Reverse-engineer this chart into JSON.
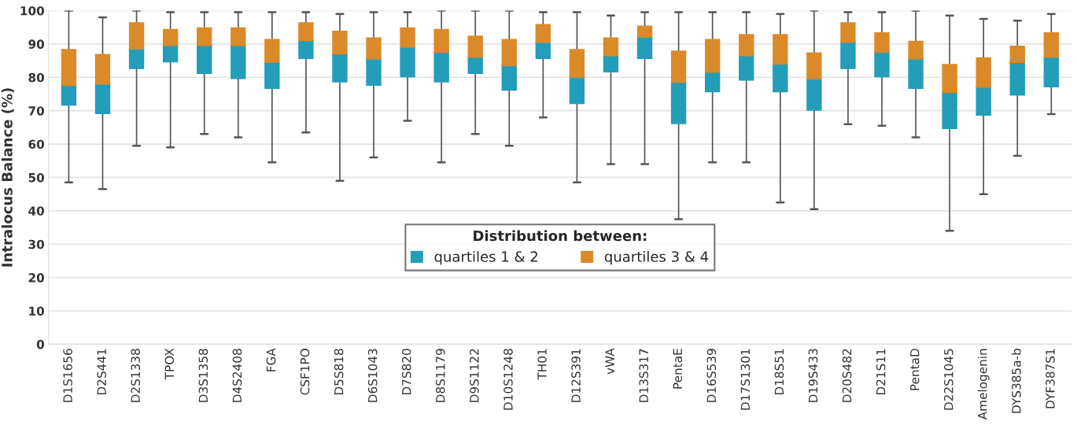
{
  "chart_data": {
    "type": "box",
    "ylabel": "Intralocus Balance (%)",
    "categories": [
      "D1S1656",
      "D2S441",
      "D2S1338",
      "TPOX",
      "D3S1358",
      "D4S2408",
      "FGA",
      "CSF1PO",
      "D5S818",
      "D6S1043",
      "D7S820",
      "D8S1179",
      "D9S1122",
      "D10S1248",
      "TH01",
      "D12S391",
      "vWA",
      "D13S317",
      "PentaE",
      "D16S539",
      "D17S1301",
      "D18S51",
      "D19S433",
      "D20S482",
      "D21S11",
      "PentaD",
      "D22S1045",
      "Amelogenin",
      "DYS385a-b",
      "DYF387S1"
    ],
    "legend_title": "Distribution between:",
    "series": [
      {
        "name": "quartiles 1 & 2",
        "color": "#239db8",
        "boxes": [
          {
            "low": 48.5,
            "q1": 71.5,
            "median": 77.5,
            "q3": 77.5,
            "high": 77.5
          },
          {
            "low": 46.5,
            "q1": 69,
            "median": 78,
            "q3": 78,
            "high": 78
          },
          {
            "low": 59.5,
            "q1": 82.5,
            "median": 88.5,
            "q3": 88.5,
            "high": 88.5
          },
          {
            "low": 59,
            "q1": 84.5,
            "median": 89.5,
            "q3": 89.5,
            "high": 89.5
          },
          {
            "low": 63,
            "q1": 81,
            "median": 89.5,
            "q3": 89.5,
            "high": 89.5
          },
          {
            "low": 62,
            "q1": 79.5,
            "median": 89.5,
            "q3": 89.5,
            "high": 89.5
          },
          {
            "low": 54.5,
            "q1": 76.5,
            "median": 84.5,
            "q3": 84.5,
            "high": 84.5
          },
          {
            "low": 63.5,
            "q1": 85.5,
            "median": 91,
            "q3": 91,
            "high": 91
          },
          {
            "low": 49,
            "q1": 78.5,
            "median": 87,
            "q3": 87,
            "high": 87
          },
          {
            "low": 56,
            "q1": 77.5,
            "median": 85.5,
            "q3": 85.5,
            "high": 85.5
          },
          {
            "low": 67,
            "q1": 80,
            "median": 89,
            "q3": 89,
            "high": 89
          },
          {
            "low": 54.5,
            "q1": 78.5,
            "median": 87.5,
            "q3": 87.5,
            "high": 87.5
          },
          {
            "low": 63,
            "q1": 81,
            "median": 86,
            "q3": 86,
            "high": 86
          },
          {
            "low": 59.5,
            "q1": 76,
            "median": 83.5,
            "q3": 83.5,
            "high": 83.5
          },
          {
            "low": 68,
            "q1": 85.5,
            "median": 90.5,
            "q3": 90.5,
            "high": 90.5
          },
          {
            "low": 48.5,
            "q1": 72,
            "median": 80,
            "q3": 80,
            "high": 80
          },
          {
            "low": 54,
            "q1": 81.5,
            "median": 86.5,
            "q3": 86.5,
            "high": 86.5
          },
          {
            "low": 54,
            "q1": 85.5,
            "median": 92,
            "q3": 92,
            "high": 92
          },
          {
            "low": 37.5,
            "q1": 66,
            "median": 78.5,
            "q3": 78.5,
            "high": 78.5
          },
          {
            "low": 54.5,
            "q1": 75.5,
            "median": 81.5,
            "q3": 81.5,
            "high": 81.5
          },
          {
            "low": 54.5,
            "q1": 79,
            "median": 86.5,
            "q3": 86.5,
            "high": 86.5
          },
          {
            "low": 42.5,
            "q1": 75.5,
            "median": 84,
            "q3": 84,
            "high": 84
          },
          {
            "low": 40.5,
            "q1": 70,
            "median": 79.5,
            "q3": 79.5,
            "high": 79.5
          },
          {
            "low": 66,
            "q1": 82.5,
            "median": 90.5,
            "q3": 90.5,
            "high": 90.5
          },
          {
            "low": 65.5,
            "q1": 80,
            "median": 87.5,
            "q3": 87.5,
            "high": 87.5
          },
          {
            "low": 62,
            "q1": 76.5,
            "median": 85.5,
            "q3": 85.5,
            "high": 85.5
          },
          {
            "low": 34,
            "q1": 64.5,
            "median": 75.5,
            "q3": 75.5,
            "high": 75.5
          },
          {
            "low": 45,
            "q1": 68.5,
            "median": 77,
            "q3": 77,
            "high": 77
          },
          {
            "low": 56.5,
            "q1": 74.5,
            "median": 84.5,
            "q3": 84.5,
            "high": 84.5
          },
          {
            "low": 69,
            "q1": 77,
            "median": 86,
            "q3": 86,
            "high": 86
          }
        ]
      },
      {
        "name": "quartiles 3 & 4",
        "color": "#db8a2a",
        "boxes": [
          {
            "low": 77.5,
            "q1": 77.5,
            "median": 77.5,
            "q3": 88.5,
            "high": 100
          },
          {
            "low": 78,
            "q1": 78,
            "median": 78,
            "q3": 87,
            "high": 98
          },
          {
            "low": 88.5,
            "q1": 88.5,
            "median": 88.5,
            "q3": 96.5,
            "high": 100
          },
          {
            "low": 89.5,
            "q1": 89.5,
            "median": 89.5,
            "q3": 94.5,
            "high": 99.5
          },
          {
            "low": 89.5,
            "q1": 89.5,
            "median": 89.5,
            "q3": 95,
            "high": 99.5
          },
          {
            "low": 89.5,
            "q1": 89.5,
            "median": 89.5,
            "q3": 95,
            "high": 99.5
          },
          {
            "low": 84.5,
            "q1": 84.5,
            "median": 84.5,
            "q3": 91.5,
            "high": 99.5
          },
          {
            "low": 91,
            "q1": 91,
            "median": 91,
            "q3": 96.5,
            "high": 99.5
          },
          {
            "low": 87,
            "q1": 87,
            "median": 87,
            "q3": 94,
            "high": 99
          },
          {
            "low": 85.5,
            "q1": 85.5,
            "median": 85.5,
            "q3": 92,
            "high": 99.5
          },
          {
            "low": 89,
            "q1": 89,
            "median": 89,
            "q3": 95,
            "high": 99.5
          },
          {
            "low": 87.5,
            "q1": 87.5,
            "median": 87.5,
            "q3": 94.5,
            "high": 100
          },
          {
            "low": 86,
            "q1": 86,
            "median": 86,
            "q3": 92.5,
            "high": 100
          },
          {
            "low": 83.5,
            "q1": 83.5,
            "median": 83.5,
            "q3": 91.5,
            "high": 100
          },
          {
            "low": 90.5,
            "q1": 90.5,
            "median": 90.5,
            "q3": 96,
            "high": 99.5
          },
          {
            "low": 80,
            "q1": 80,
            "median": 80,
            "q3": 88.5,
            "high": 99.5
          },
          {
            "low": 86.5,
            "q1": 86.5,
            "median": 86.5,
            "q3": 92,
            "high": 98.5
          },
          {
            "low": 92,
            "q1": 92,
            "median": 92,
            "q3": 95.5,
            "high": 99.5
          },
          {
            "low": 78.5,
            "q1": 78.5,
            "median": 78.5,
            "q3": 88,
            "high": 99.5
          },
          {
            "low": 81.5,
            "q1": 81.5,
            "median": 81.5,
            "q3": 91.5,
            "high": 99.5
          },
          {
            "low": 86.5,
            "q1": 86.5,
            "median": 86.5,
            "q3": 93,
            "high": 99.5
          },
          {
            "low": 84,
            "q1": 84,
            "median": 84,
            "q3": 93,
            "high": 99
          },
          {
            "low": 79.5,
            "q1": 79.5,
            "median": 79.5,
            "q3": 87.5,
            "high": 100
          },
          {
            "low": 90.5,
            "q1": 90.5,
            "median": 90.5,
            "q3": 96.5,
            "high": 99.5
          },
          {
            "low": 87.5,
            "q1": 87.5,
            "median": 87.5,
            "q3": 93.5,
            "high": 99.5
          },
          {
            "low": 85.5,
            "q1": 85.5,
            "median": 85.5,
            "q3": 91,
            "high": 100
          },
          {
            "low": 75.5,
            "q1": 75.5,
            "median": 75.5,
            "q3": 84,
            "high": 98.5
          },
          {
            "low": 77,
            "q1": 77,
            "median": 77,
            "q3": 86,
            "high": 97.5
          },
          {
            "low": 84.5,
            "q1": 84.5,
            "median": 84.5,
            "q3": 89.5,
            "high": 97
          },
          {
            "low": 86,
            "q1": 86,
            "median": 86,
            "q3": 93.5,
            "high": 99
          }
        ]
      }
    ],
    "ylim": [
      0,
      100
    ],
    "yticks": [
      0,
      10,
      20,
      30,
      40,
      50,
      60,
      70,
      80,
      90,
      100
    ],
    "grid": "y",
    "legend": "bottom"
  }
}
